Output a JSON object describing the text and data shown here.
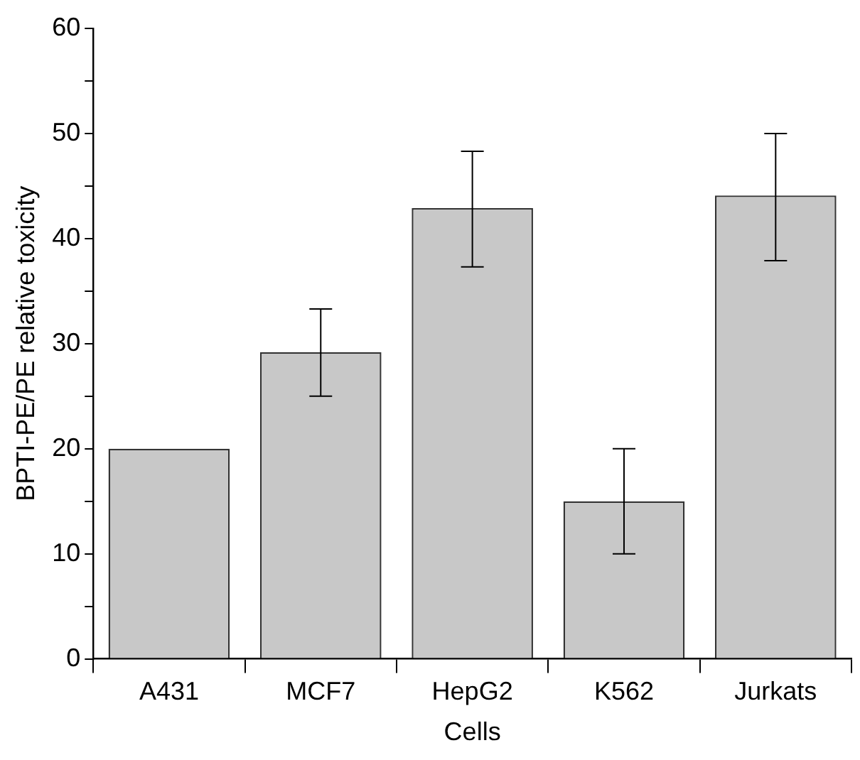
{
  "chart_data": {
    "type": "bar",
    "xlabel": "Cells",
    "ylabel": "BPTI-PE/PE relative toxicity",
    "categories": [
      "A431",
      "MCF7",
      "HepG2",
      "K562",
      "Jurkats"
    ],
    "values": [
      20,
      29.2,
      42.9,
      15,
      44.1
    ],
    "errors": [
      null,
      [
        25,
        33.3
      ],
      [
        37.3,
        48.3
      ],
      [
        10,
        20
      ],
      [
        37.9,
        50
      ]
    ],
    "color": "#c8c8c8",
    "ylim": [
      0,
      60
    ],
    "yticks": [
      0,
      {
        "value": 5,
        "label": null
      },
      10,
      {
        "value": 15,
        "label": null
      },
      20,
      {
        "value": 25,
        "label": null
      },
      30,
      {
        "value": 35,
        "label": null
      },
      40,
      {
        "value": 45,
        "label": null
      },
      50,
      {
        "value": 55,
        "label": null
      },
      60
    ],
    "grid": false,
    "legend": false
  }
}
